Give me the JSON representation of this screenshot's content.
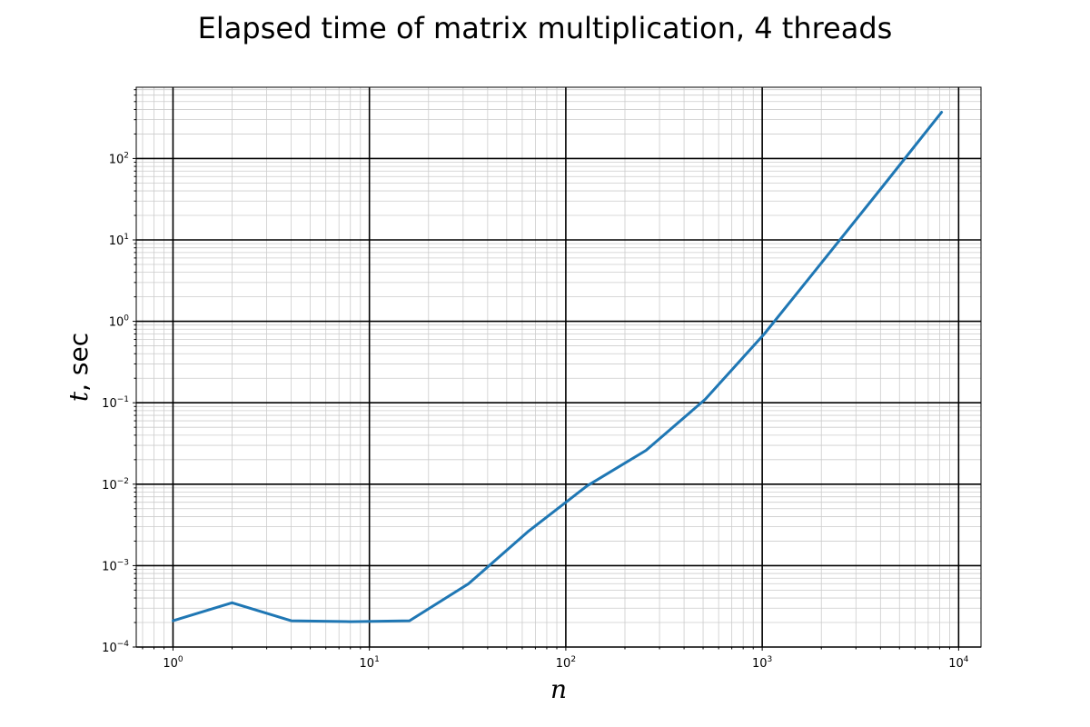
{
  "chart_data": {
    "type": "line",
    "title": "Elapsed time of matrix multiplication, 4 threads",
    "xlabel": "n",
    "ylabel_var": "t",
    "ylabel_unit": ", sec",
    "xscale": "log",
    "yscale": "log",
    "xlim": [
      0.65,
      13000
    ],
    "ylim": [
      0.0001,
      750
    ],
    "grid": {
      "major": true,
      "minor": true
    },
    "x_ticks": [
      {
        "value": 1,
        "base": "10",
        "exp": "0"
      },
      {
        "value": 10,
        "base": "10",
        "exp": "1"
      },
      {
        "value": 100,
        "base": "10",
        "exp": "2"
      },
      {
        "value": 1000,
        "base": "10",
        "exp": "3"
      },
      {
        "value": 10000,
        "base": "10",
        "exp": "4"
      }
    ],
    "y_ticks": [
      {
        "value": 0.0001,
        "base": "10",
        "exp": "−4"
      },
      {
        "value": 0.001,
        "base": "10",
        "exp": "−3"
      },
      {
        "value": 0.01,
        "base": "10",
        "exp": "−2"
      },
      {
        "value": 0.1,
        "base": "10",
        "exp": "−1"
      },
      {
        "value": 1,
        "base": "10",
        "exp": "0"
      },
      {
        "value": 10,
        "base": "10",
        "exp": "1"
      },
      {
        "value": 100,
        "base": "10",
        "exp": "2"
      }
    ],
    "series": [
      {
        "color": "#1f77b4",
        "x": [
          1,
          2,
          4,
          8,
          16,
          32,
          64,
          128,
          256,
          512,
          1024,
          2048,
          4096,
          8192
        ],
        "y": [
          0.00021,
          0.00035,
          0.00021,
          0.000205,
          0.00021,
          0.0006,
          0.0026,
          0.0095,
          0.026,
          0.11,
          0.7,
          5.6,
          45,
          370
        ]
      }
    ]
  }
}
